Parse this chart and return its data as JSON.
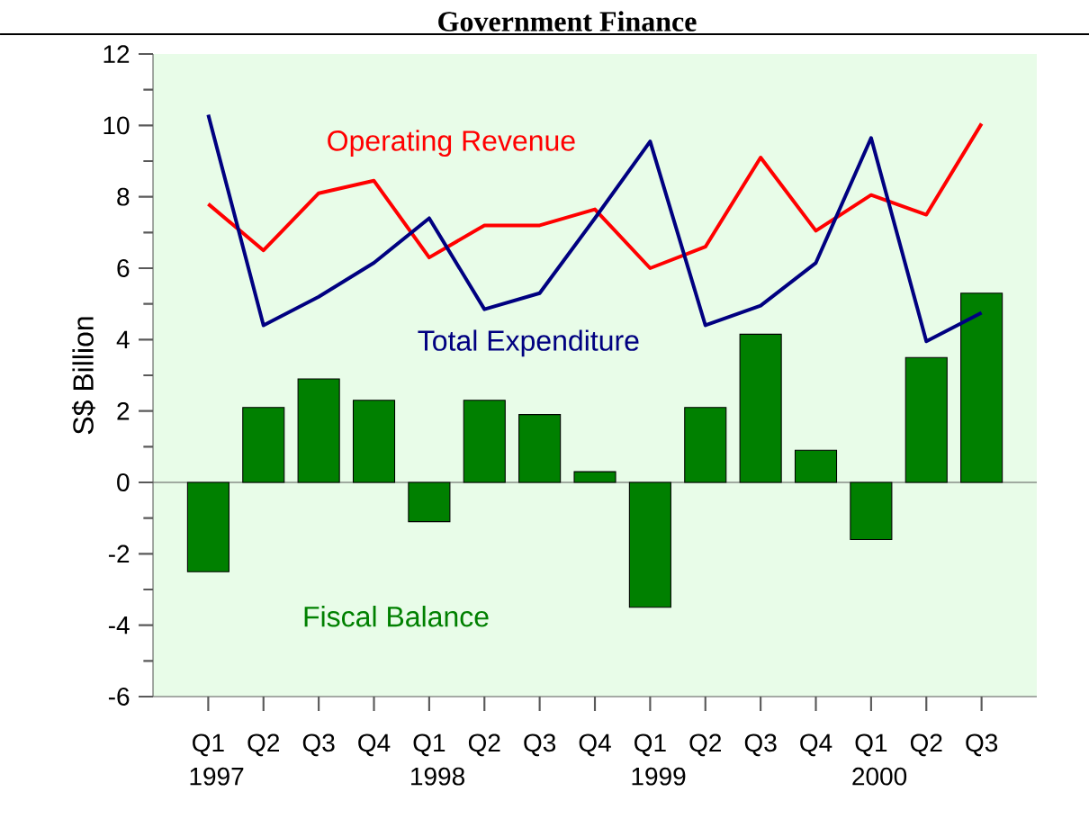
{
  "chart_data": {
    "type": "bar",
    "title": "Government Finance",
    "ylabel": "S$ Billion",
    "categories": [
      "Q1",
      "Q2",
      "Q3",
      "Q4",
      "Q1",
      "Q2",
      "Q3",
      "Q4",
      "Q1",
      "Q2",
      "Q3",
      "Q4",
      "Q1",
      "Q2",
      "Q3"
    ],
    "series": [
      {
        "name": "Fiscal Balance",
        "color": "#008000",
        "values": [
          -2.5,
          2.1,
          2.9,
          2.3,
          -1.1,
          2.3,
          1.9,
          0.3,
          -3.5,
          2.1,
          4.15,
          0.9,
          -1.6,
          3.5,
          5.3
        ]
      },
      {
        "name": "Operating Revenue",
        "type": "line",
        "color": "#ff0000",
        "values": [
          7.8,
          6.5,
          8.1,
          8.45,
          6.3,
          7.2,
          7.2,
          7.65,
          6.0,
          6.6,
          9.1,
          7.05,
          8.05,
          7.5,
          10.05
        ]
      },
      {
        "name": "Total Expenditure",
        "type": "line",
        "color": "#000080",
        "values": [
          10.3,
          4.4,
          5.2,
          6.15,
          7.4,
          4.85,
          5.3,
          7.4,
          9.55,
          4.4,
          4.95,
          6.15,
          9.65,
          3.95,
          4.75
        ]
      }
    ],
    "ylim": [
      -6,
      12
    ],
    "yticks": [
      -6,
      -4,
      -2,
      0,
      2,
      4,
      6,
      8,
      10,
      12
    ],
    "annotations": [
      "1997",
      "1998",
      "1999",
      "2000"
    ]
  }
}
